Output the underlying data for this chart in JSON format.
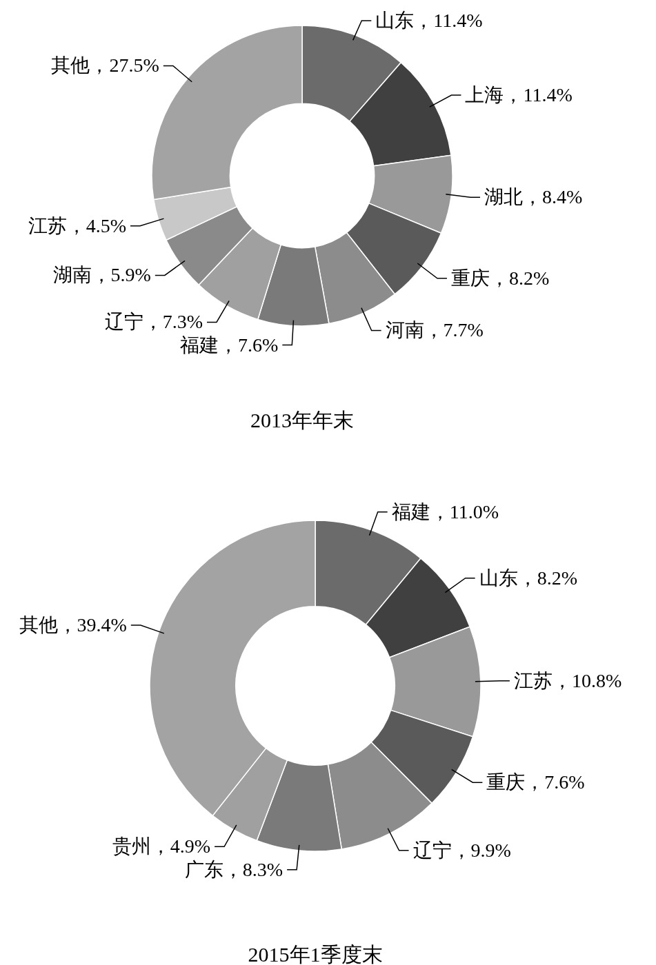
{
  "chart_data": [
    {
      "type": "donut",
      "title": "2013年年末",
      "categories": [
        "山东",
        "上海",
        "湖北",
        "重庆",
        "河南",
        "福建",
        "辽宁",
        "湖南",
        "江苏",
        "其他"
      ],
      "values": [
        11.4,
        11.4,
        8.4,
        8.2,
        7.7,
        7.6,
        7.3,
        5.9,
        4.5,
        27.5
      ],
      "value_labels": [
        "，11.4%",
        "，11.4%",
        "，8.4%",
        "，8.2%",
        "，7.7%",
        "，7.6%",
        "，7.3%",
        "，5.9%",
        "，4.5%",
        "，27.5%"
      ],
      "colors": [
        "#6b6b6b",
        "#404040",
        "#999999",
        "#5a5a5a",
        "#8c8c8c",
        "#7a7a7a",
        "#a0a0a0",
        "#8a8a8a",
        "#c8c8c8",
        "#a3a3a3"
      ]
    },
    {
      "type": "donut",
      "title": "2015年1季度末",
      "categories": [
        "福建",
        "山东",
        "江苏",
        "重庆",
        "辽宁",
        "广东",
        "贵州",
        "其他"
      ],
      "values": [
        11.0,
        8.2,
        10.8,
        7.6,
        9.9,
        8.3,
        4.9,
        39.4
      ],
      "value_labels": [
        "，11.0%",
        "，8.2%",
        "，10.8%",
        "，7.6%",
        "，9.9%",
        "，8.3%",
        "，4.9%",
        "，39.4%"
      ],
      "colors": [
        "#6b6b6b",
        "#404040",
        "#999999",
        "#5a5a5a",
        "#8c8c8c",
        "#7a7a7a",
        "#a0a0a0",
        "#a3a3a3"
      ]
    }
  ]
}
